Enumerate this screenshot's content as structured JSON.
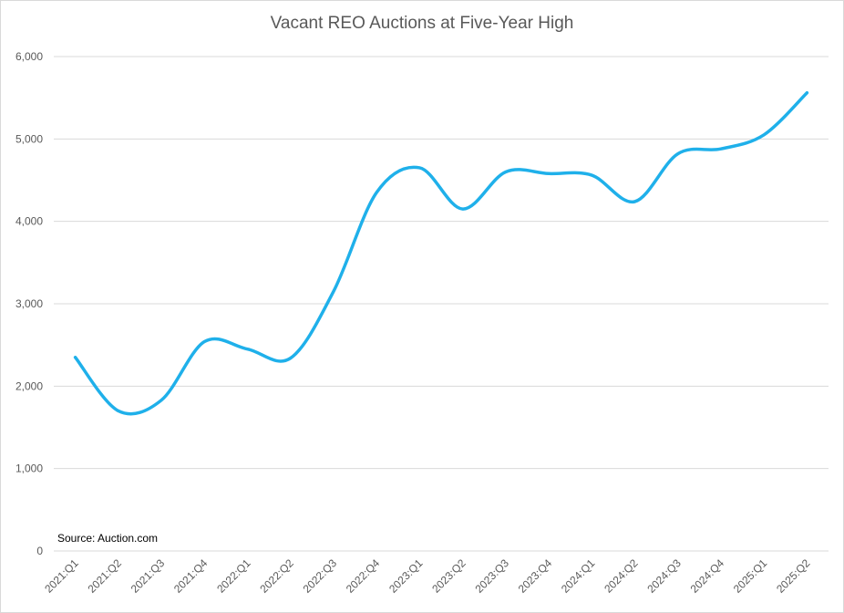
{
  "chart_data": {
    "type": "line",
    "title": "Vacant REO Auctions at Five-Year High",
    "source_note": "Source: Auction.com",
    "xlabel": "",
    "ylabel": "",
    "ylim": [
      0,
      6000
    ],
    "y_ticks": [
      "0",
      "1,000",
      "2,000",
      "3,000",
      "4,000",
      "5,000",
      "6,000"
    ],
    "y_tick_values": [
      0,
      1000,
      2000,
      3000,
      4000,
      5000,
      6000
    ],
    "grid": true,
    "legend": "none",
    "categories": [
      "2021:Q1",
      "2021:Q2",
      "2021:Q3",
      "2021:Q4",
      "2022:Q1",
      "2022:Q2",
      "2022:Q3",
      "2022:Q4",
      "2023:Q1",
      "2023:Q2",
      "2023:Q3",
      "2023:Q4",
      "2024:Q1",
      "2024:Q2",
      "2024:Q3",
      "2024:Q4",
      "2025:Q1",
      "2025:Q2"
    ],
    "series": [
      {
        "values": [
          2350,
          1700,
          1830,
          2540,
          2450,
          2340,
          3150,
          4350,
          4650,
          4150,
          4600,
          4580,
          4560,
          4240,
          4820,
          4880,
          5050,
          5560
        ],
        "color": "#1fb0ea"
      }
    ],
    "colors": {
      "line": "#1fb0ea",
      "grid": "#d9d9d9",
      "tick_text": "#595959",
      "title_text": "#595959"
    }
  }
}
